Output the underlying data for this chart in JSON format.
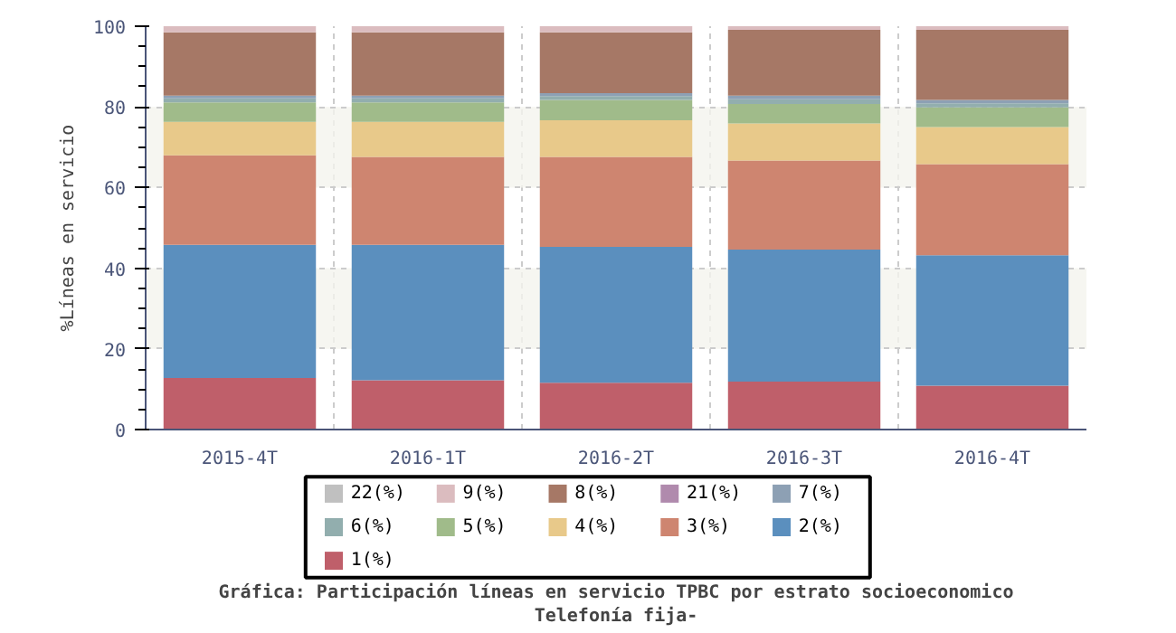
{
  "chart_data": {
    "type": "bar",
    "stacked": true,
    "title": "Gráfica: Participación líneas en servicio TPBC por estrato socioeconomico",
    "subtitle": "Telefonía fija-",
    "ylabel": "%Líneas en servicio",
    "categories": [
      "2015-4T",
      "2016-1T",
      "2016-2T",
      "2016-3T",
      "2016-4T"
    ],
    "series": [
      {
        "name": "1(%)",
        "color": "#bf5f6a",
        "values": [
          12.8,
          12.2,
          11.6,
          11.9,
          10.9
        ]
      },
      {
        "name": "2(%)",
        "color": "#5b8fbe",
        "values": [
          33.0,
          33.6,
          33.7,
          32.7,
          32.3
        ]
      },
      {
        "name": "3(%)",
        "color": "#ce8570",
        "values": [
          22.2,
          21.8,
          22.3,
          22.1,
          22.6
        ]
      },
      {
        "name": "4(%)",
        "color": "#e8c98a",
        "values": [
          8.3,
          8.7,
          9.1,
          9.2,
          9.2
        ]
      },
      {
        "name": "5(%)",
        "color": "#a0bb8a",
        "values": [
          4.8,
          4.8,
          5.0,
          4.8,
          4.9
        ]
      },
      {
        "name": "6(%)",
        "color": "#92aeae",
        "values": [
          1.0,
          1.0,
          1.0,
          1.2,
          1.0
        ]
      },
      {
        "name": "7(%)",
        "color": "#8da0b4",
        "values": [
          0.7,
          0.7,
          0.7,
          0.9,
          0.8
        ]
      },
      {
        "name": "21(%)",
        "color": "#b08aad",
        "values": [
          0,
          0,
          0,
          0,
          0
        ]
      },
      {
        "name": "8(%)",
        "color": "#a67866",
        "values": [
          15.7,
          15.7,
          15.1,
          16.3,
          17.4
        ]
      },
      {
        "name": "9(%)",
        "color": "#dbbcbf",
        "values": [
          1.5,
          1.5,
          1.5,
          0.9,
          0.9
        ]
      },
      {
        "name": "22(%)",
        "color": "#c0c0c0",
        "values": [
          0,
          0,
          0,
          0,
          0
        ]
      }
    ],
    "ylim": [
      0,
      100
    ],
    "yticks": [
      0,
      20,
      40,
      60,
      80,
      100
    ],
    "grid": true,
    "legend": "bottom"
  }
}
